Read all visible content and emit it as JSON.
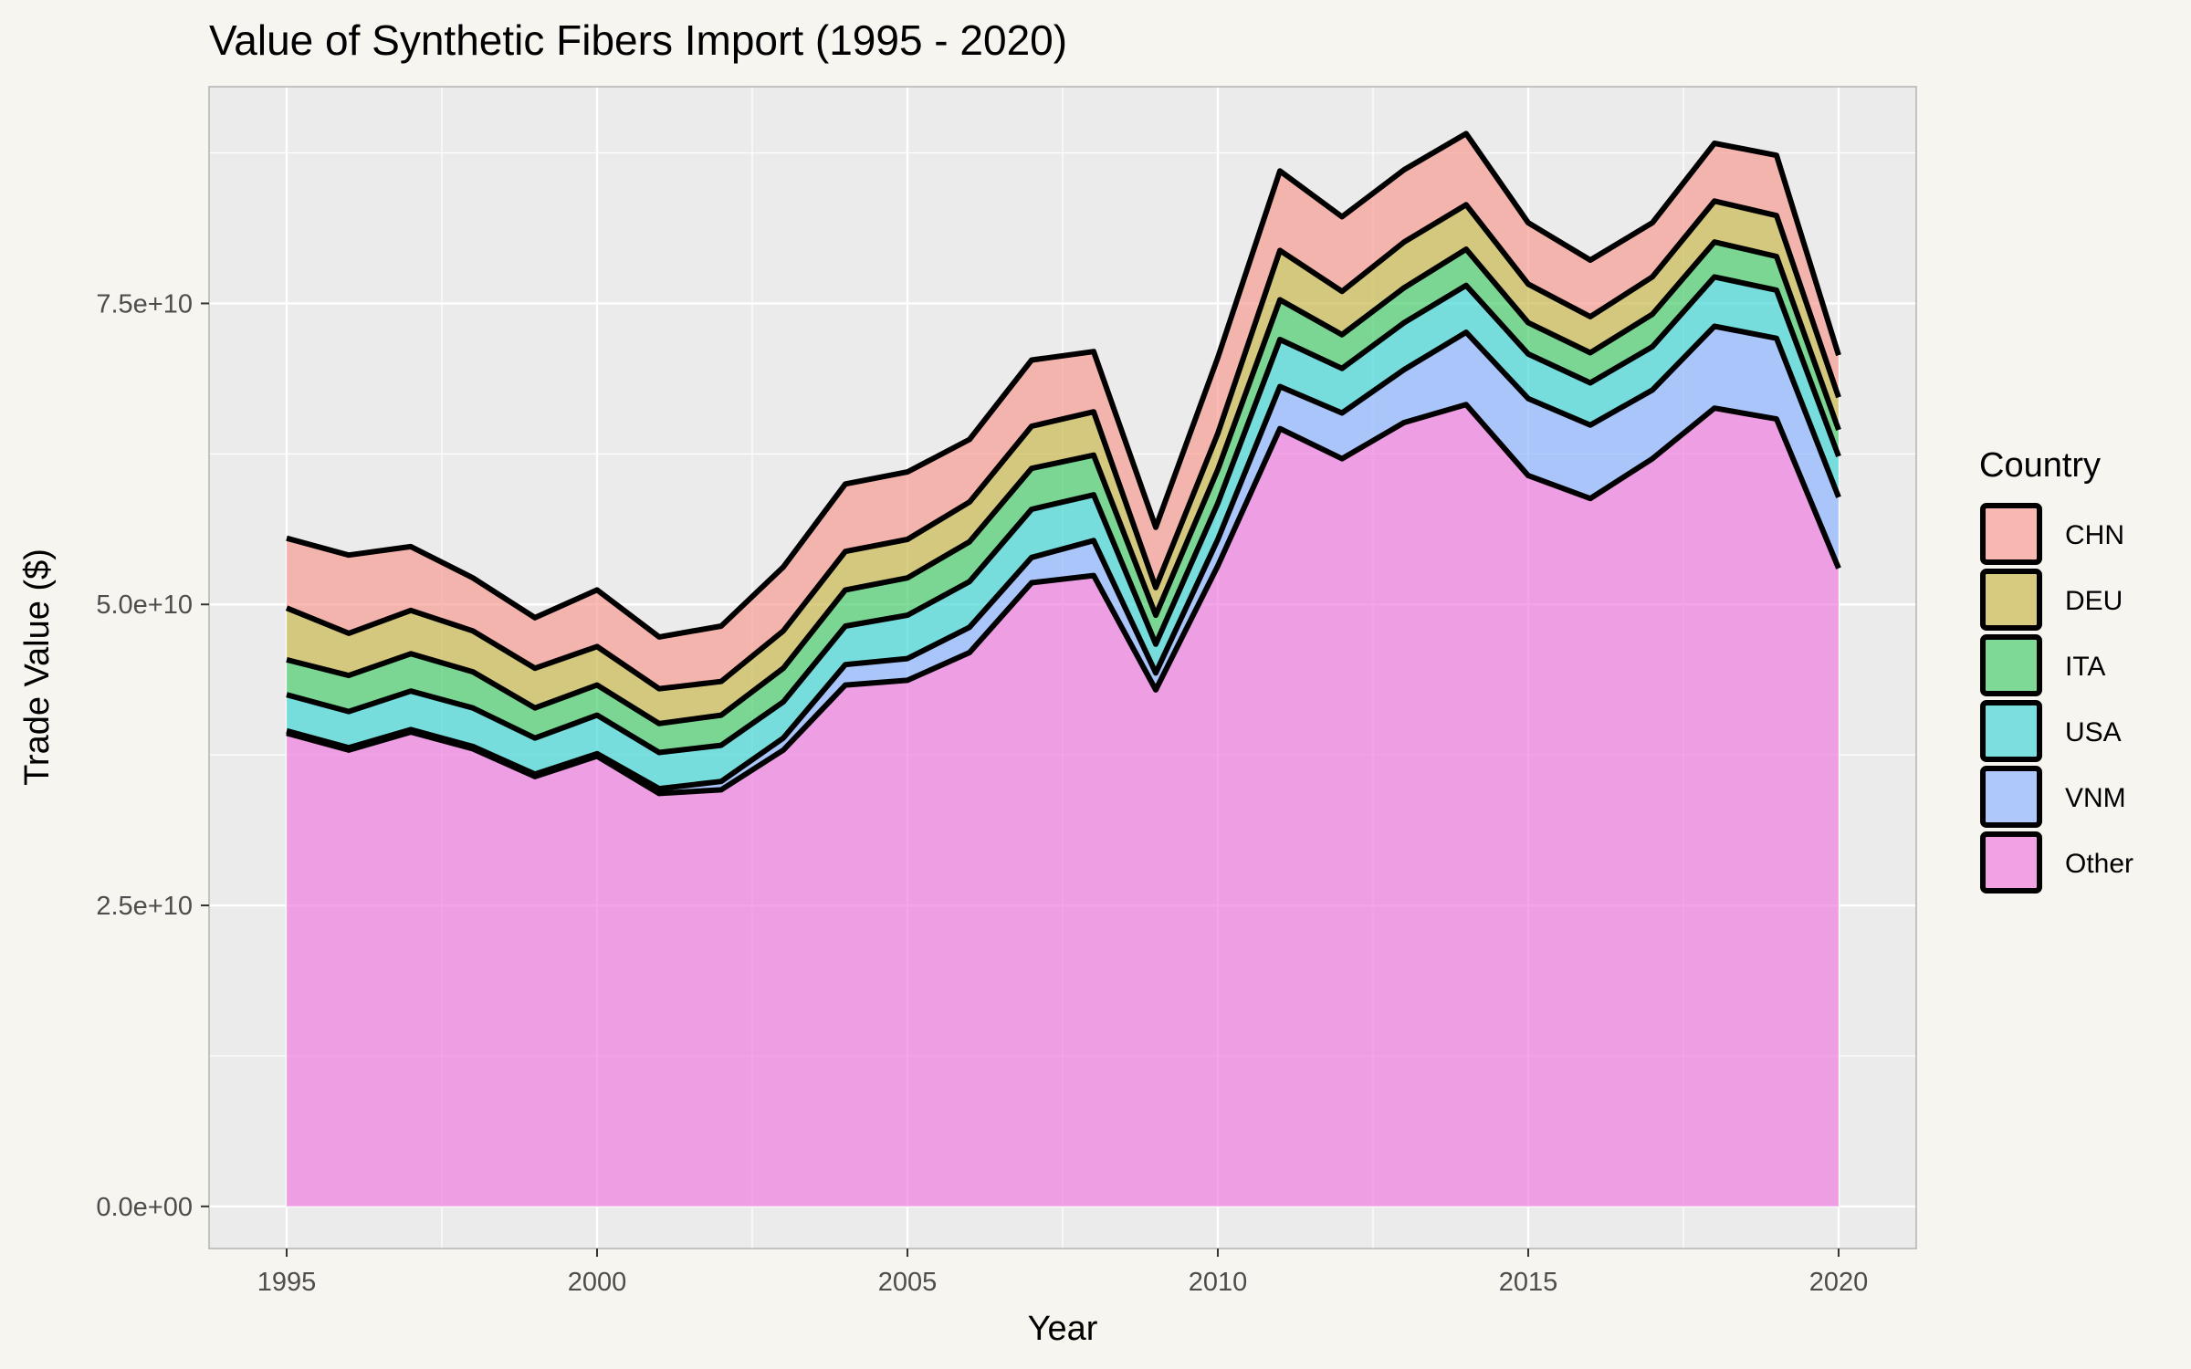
{
  "chart_data": {
    "type": "area",
    "stacked": true,
    "title": "Value of Synthetic Fibers Import (1995 - 2020)",
    "xlabel": "Year",
    "ylabel": "Trade Value ($)",
    "x": [
      1995,
      1996,
      1997,
      1998,
      1999,
      2000,
      2001,
      2002,
      2003,
      2004,
      2005,
      2006,
      2007,
      2008,
      2009,
      2010,
      2011,
      2012,
      2013,
      2014,
      2015,
      2016,
      2017,
      2018,
      2019,
      2020
    ],
    "xlim": [
      1993.75,
      2021.25
    ],
    "ylim": [
      -3500000000.0,
      93000000000.0
    ],
    "x_ticks": [
      1995,
      2000,
      2005,
      2010,
      2015,
      2020
    ],
    "x_tick_labels": [
      "1995",
      "2000",
      "2005",
      "2010",
      "2015",
      "2020"
    ],
    "y_ticks": [
      0,
      25000000000.0,
      50000000000.0,
      75000000000.0
    ],
    "y_tick_labels": [
      "0.0e+00",
      "2.5e+10",
      "5.0e+10",
      "7.5e+10"
    ],
    "grid": true,
    "legend": {
      "title": "Country",
      "position": "right"
    },
    "series": [
      {
        "name": "Other",
        "color": "#f07ee0",
        "values": [
          39300000000.0,
          37900000000.0,
          39400000000.0,
          38000000000.0,
          35700000000.0,
          37400000000.0,
          34300000000.0,
          34600000000.0,
          37900000000.0,
          43300000000.0,
          43700000000.0,
          46000000000.0,
          51800000000.0,
          52400000000.0,
          42900000000.0,
          53200000000.0,
          64600000000.0,
          62100000000.0,
          65100000000.0,
          66600000000.0,
          60700000000.0,
          58800000000.0,
          62100000000.0,
          66300000000.0,
          65400000000.0,
          53000000000.0
        ]
      },
      {
        "name": "VNM",
        "color": "#8fb5ff",
        "values": [
          200000000.0,
          200000000.0,
          200000000.0,
          200000000.0,
          200000000.0,
          200000000.0,
          400000000.0,
          700000000.0,
          1000000000.0,
          1700000000.0,
          1800000000.0,
          2100000000.0,
          2100000000.0,
          2900000000.0,
          1400000000.0,
          2200000000.0,
          3500000000.0,
          3800000000.0,
          4400000000.0,
          6000000000.0,
          6400000000.0,
          6100000000.0,
          5700000000.0,
          6800000000.0,
          6700000000.0,
          5900000000.0
        ]
      },
      {
        "name": "USA",
        "color": "#45d6d6",
        "values": [
          3000000000.0,
          3000000000.0,
          3200000000.0,
          3200000000.0,
          3000000000.0,
          3200000000.0,
          3000000000.0,
          3000000000.0,
          3000000000.0,
          3200000000.0,
          3600000000.0,
          3800000000.0,
          4000000000.0,
          3800000000.0,
          2400000000.0,
          3000000000.0,
          3900000000.0,
          3700000000.0,
          3900000000.0,
          3900000000.0,
          3700000000.0,
          3500000000.0,
          3600000000.0,
          4100000000.0,
          4000000000.0,
          3400000000.0
        ]
      },
      {
        "name": "ITA",
        "color": "#4ccd6f",
        "values": [
          2900000000.0,
          3000000000.0,
          3100000000.0,
          3000000000.0,
          2500000000.0,
          2500000000.0,
          2400000000.0,
          2500000000.0,
          2800000000.0,
          3000000000.0,
          3100000000.0,
          3300000000.0,
          3400000000.0,
          3300000000.0,
          2400000000.0,
          2800000000.0,
          3300000000.0,
          2800000000.0,
          2900000000.0,
          3000000000.0,
          2600000000.0,
          2500000000.0,
          2700000000.0,
          2900000000.0,
          2800000000.0,
          2200000000.0
        ]
      },
      {
        "name": "DEU",
        "color": "#c9b94f",
        "values": [
          4300000000.0,
          3500000000.0,
          3600000000.0,
          3400000000.0,
          3300000000.0,
          3200000000.0,
          2900000000.0,
          2800000000.0,
          3100000000.0,
          3200000000.0,
          3200000000.0,
          3300000000.0,
          3500000000.0,
          3600000000.0,
          2300000000.0,
          3000000000.0,
          4100000000.0,
          3600000000.0,
          3800000000.0,
          3700000000.0,
          3200000000.0,
          3000000000.0,
          3100000000.0,
          3400000000.0,
          3400000000.0,
          2700000000.0
        ]
      },
      {
        "name": "CHN",
        "color": "#f89c94",
        "values": [
          5800000000.0,
          6500000000.0,
          5300000000.0,
          4400000000.0,
          4200000000.0,
          4700000000.0,
          4300000000.0,
          4600000000.0,
          5300000000.0,
          5600000000.0,
          5600000000.0,
          5200000000.0,
          5500000000.0,
          5000000000.0,
          5000000000.0,
          6300000000.0,
          6600000000.0,
          6200000000.0,
          6000000000.0,
          5900000000.0,
          5100000000.0,
          4700000000.0,
          4500000000.0,
          4800000000.0,
          5000000000.0,
          3500000000.0
        ]
      }
    ],
    "legend_order": [
      "CHN",
      "DEU",
      "ITA",
      "USA",
      "VNM",
      "Other"
    ]
  }
}
